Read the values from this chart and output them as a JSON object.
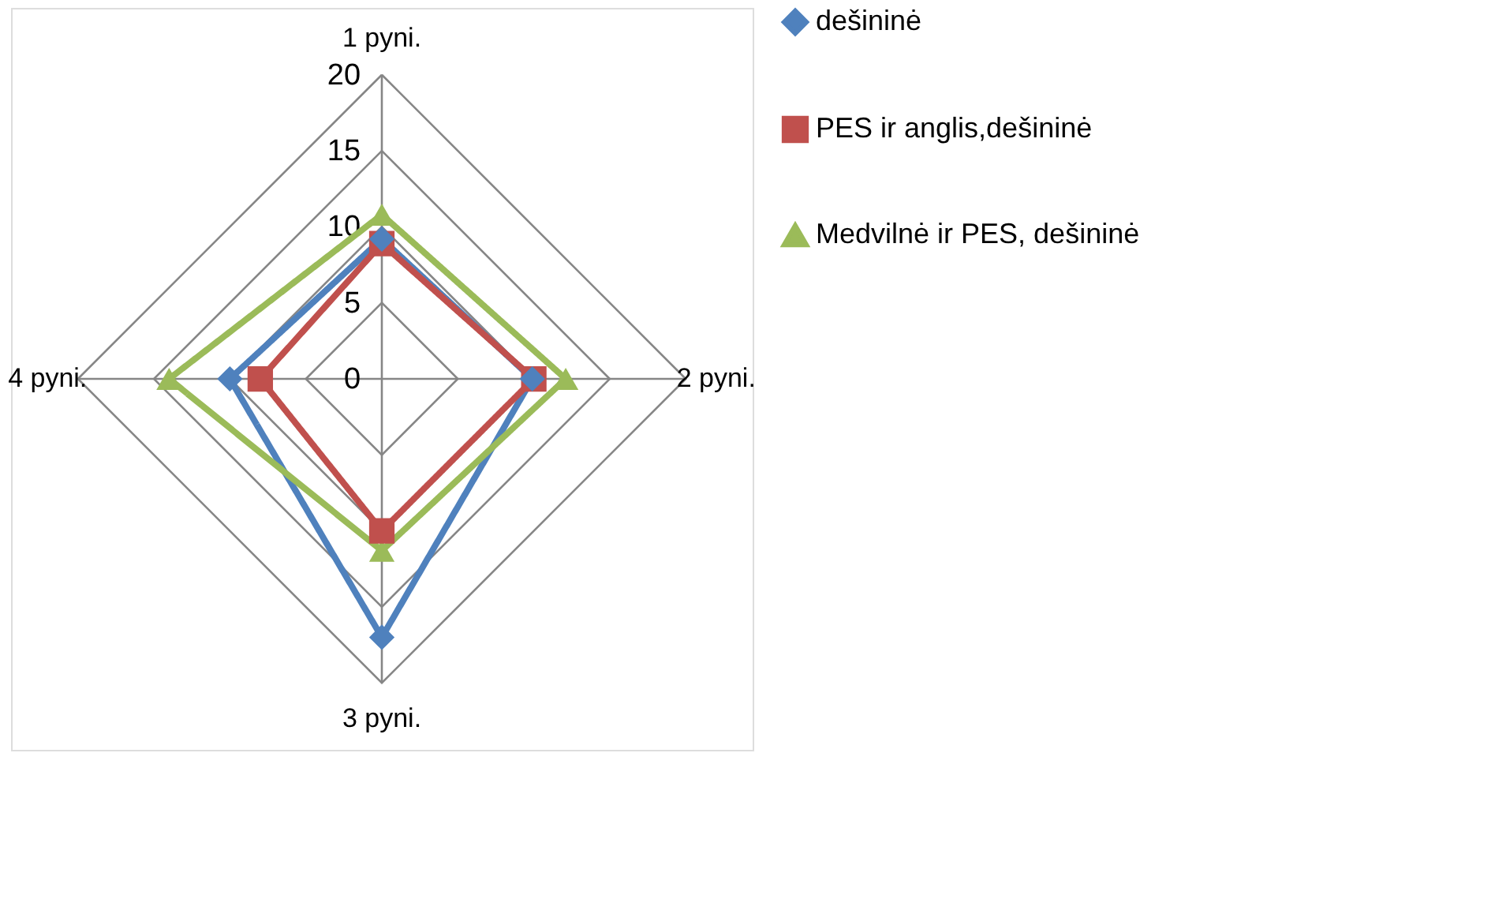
{
  "chart_data": {
    "type": "radar",
    "categories": [
      "1 pyni.",
      "2 pyni.",
      "3 pyni.",
      "4 pyni."
    ],
    "ylim": [
      0,
      20
    ],
    "yticks": [
      0,
      5,
      10,
      15,
      20
    ],
    "grid": true,
    "legend": "right",
    "line_style": "solid",
    "series": [
      {
        "name": "dešininė",
        "color": "#4f81bd",
        "marker": "diamond",
        "values": [
          9.2,
          9.9,
          17.0,
          10.0
        ]
      },
      {
        "name": "PES ir anglis,dešininė",
        "color": "#c0504d",
        "marker": "square",
        "values": [
          8.9,
          10.0,
          10.0,
          8.0
        ]
      },
      {
        "name": "Medvilnė ir PES, dešininė",
        "color": "#9bbb59",
        "marker": "triangle",
        "values": [
          10.8,
          12.1,
          11.3,
          14.0
        ]
      }
    ]
  }
}
